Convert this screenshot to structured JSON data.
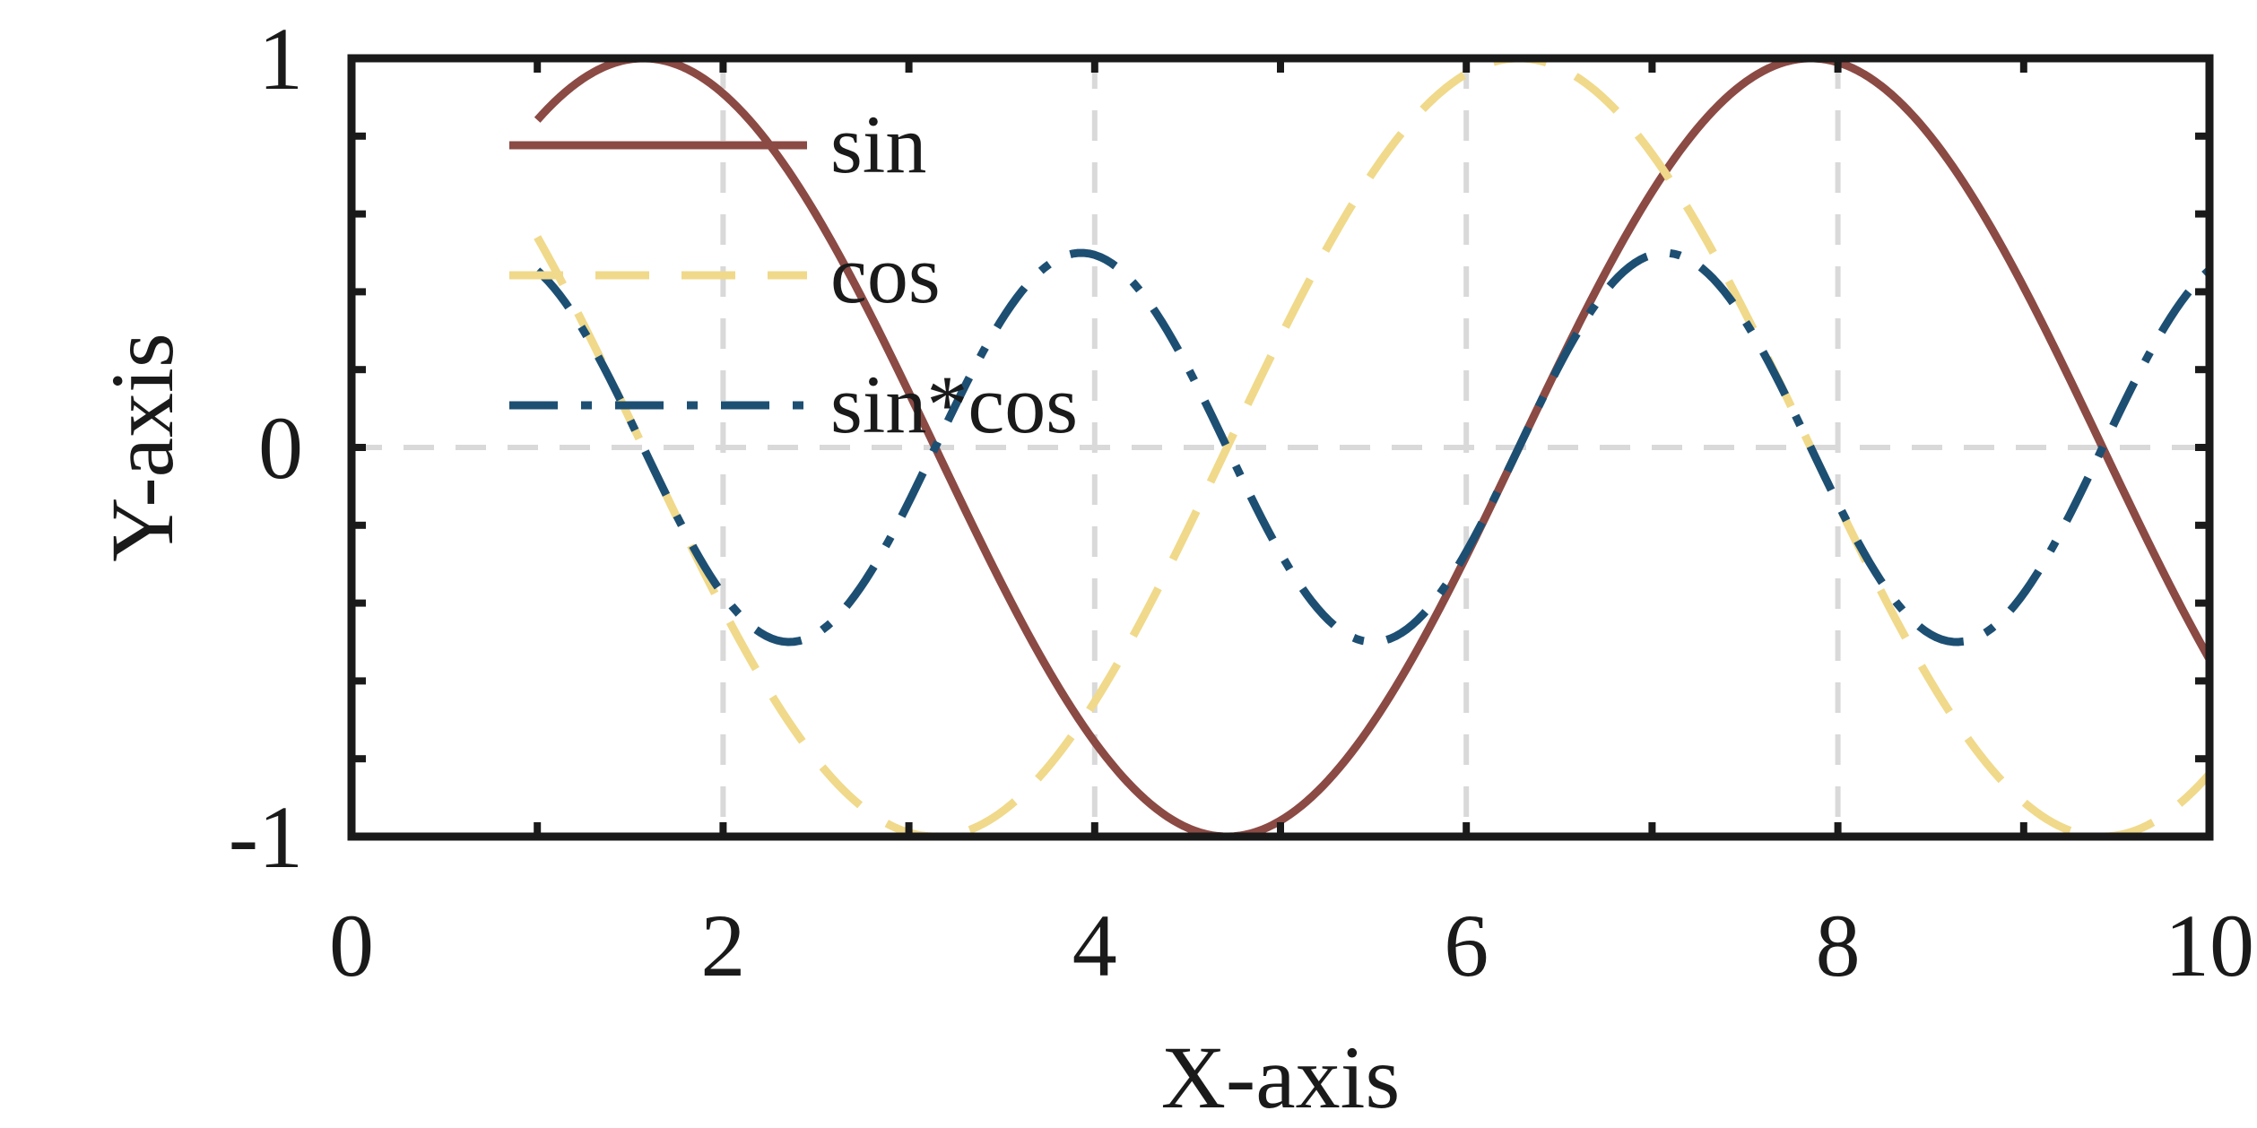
{
  "chart_data": {
    "type": "line",
    "xlabel": "X-axis",
    "ylabel": "Y-axis",
    "xlim": [
      0,
      10
    ],
    "ylim": [
      -1,
      1
    ],
    "x_ticks": [
      0,
      2,
      4,
      6,
      8,
      10
    ],
    "y_ticks": [
      -1,
      0,
      1
    ],
    "x_tick_labels": [
      "0",
      "2",
      "4",
      "6",
      "8",
      "10"
    ],
    "y_tick_labels": [
      "-1",
      "0",
      "1"
    ],
    "grid": true,
    "legend_position": "top-left",
    "x_range": [
      1,
      10
    ],
    "series": [
      {
        "name": "sin",
        "color": "#8B4A44",
        "style": "solid",
        "x": [
          1.0,
          1.5,
          2.0,
          2.5,
          3.0,
          3.5,
          4.0,
          4.5,
          5.0,
          5.5,
          6.0,
          6.5,
          7.0,
          7.5,
          8.0,
          8.5,
          9.0,
          9.5,
          10.0
        ],
        "y": [
          0.841,
          0.997,
          0.909,
          0.598,
          0.141,
          -0.351,
          -0.757,
          -0.978,
          -0.959,
          -0.706,
          -0.279,
          0.215,
          0.657,
          0.938,
          0.989,
          0.798,
          0.412,
          -0.075,
          -0.544
        ]
      },
      {
        "name": "cos",
        "color": "#F0D98A",
        "style": "dashed",
        "x": [
          1.0,
          1.5,
          2.0,
          2.5,
          3.0,
          3.5,
          4.0,
          4.5,
          5.0,
          5.5,
          6.0,
          6.5,
          7.0,
          7.5,
          8.0,
          8.5,
          9.0,
          9.5,
          10.0
        ],
        "y": [
          0.54,
          0.071,
          -0.416,
          -0.801,
          -0.99,
          -0.936,
          -0.654,
          -0.211,
          0.284,
          0.709,
          0.96,
          0.977,
          0.754,
          0.347,
          -0.146,
          -0.602,
          -0.911,
          -0.997,
          -0.839
        ]
      },
      {
        "name": "sin*cos",
        "color": "#1D4F73",
        "style": "dashdot",
        "x": [
          1.0,
          1.5,
          2.0,
          2.5,
          3.0,
          3.5,
          4.0,
          4.5,
          5.0,
          5.5,
          6.0,
          6.5,
          7.0,
          7.5,
          8.0,
          8.5,
          9.0,
          9.5,
          10.0
        ],
        "y": [
          0.455,
          0.071,
          -0.378,
          -0.479,
          -0.14,
          0.329,
          0.495,
          0.206,
          -0.272,
          -0.5,
          -0.268,
          0.21,
          0.495,
          0.325,
          -0.144,
          -0.481,
          -0.375,
          0.075,
          0.456
        ]
      }
    ]
  }
}
